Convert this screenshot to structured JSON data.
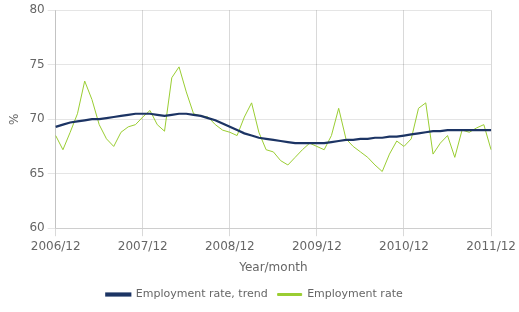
{
  "chart_data": {
    "type": "line",
    "xlabel": "Year/month",
    "ylabel": "%",
    "categories": [
      "2006/12",
      null,
      null,
      null,
      null,
      null,
      null,
      null,
      null,
      null,
      null,
      null,
      "2007/12",
      null,
      null,
      null,
      null,
      null,
      null,
      null,
      null,
      null,
      null,
      null,
      "2008/12",
      null,
      null,
      null,
      null,
      null,
      null,
      null,
      null,
      null,
      null,
      null,
      "2009/12",
      null,
      null,
      null,
      null,
      null,
      null,
      null,
      null,
      null,
      null,
      null,
      "2010/12",
      null,
      null,
      null,
      null,
      null,
      null,
      null,
      null,
      null,
      null,
      null,
      "2011/12"
    ],
    "series": [
      {
        "name": "Employment rate",
        "color": "#9ACD32",
        "values": [
          68.5,
          67.2,
          68.8,
          70.5,
          73.5,
          71.8,
          69.5,
          68.2,
          67.5,
          68.8,
          69.3,
          69.5,
          70.2,
          70.8,
          69.5,
          68.9,
          73.8,
          74.8,
          72.5,
          70.5,
          70.3,
          70.2,
          69.5,
          69.0,
          68.8,
          68.5,
          70.2,
          71.5,
          68.8,
          67.2,
          67.0,
          66.2,
          65.8,
          66.5,
          67.2,
          67.8,
          67.5,
          67.2,
          68.5,
          71.0,
          68.2,
          67.5,
          67.0,
          66.5,
          65.8,
          65.2,
          66.8,
          68.0,
          67.5,
          68.2,
          71.0,
          71.5,
          66.8,
          67.8,
          68.5,
          66.5,
          69.0,
          68.8,
          69.2,
          69.5,
          67.2
        ]
      },
      {
        "name": "Employment rate, trend",
        "color": "#1C3464",
        "values": [
          69.3,
          69.5,
          69.7,
          69.8,
          69.9,
          70.0,
          70.0,
          70.1,
          70.2,
          70.3,
          70.4,
          70.5,
          70.5,
          70.5,
          70.4,
          70.3,
          70.4,
          70.5,
          70.5,
          70.4,
          70.3,
          70.1,
          69.9,
          69.6,
          69.3,
          69.0,
          68.7,
          68.5,
          68.3,
          68.2,
          68.1,
          68.0,
          67.9,
          67.8,
          67.8,
          67.8,
          67.8,
          67.8,
          67.9,
          68.0,
          68.1,
          68.1,
          68.2,
          68.2,
          68.3,
          68.3,
          68.4,
          68.4,
          68.5,
          68.6,
          68.7,
          68.8,
          68.9,
          68.9,
          69.0,
          69.0,
          69.0,
          69.0,
          69.0,
          69.0,
          69.0
        ]
      }
    ],
    "ylim": [
      60,
      80
    ],
    "yticks": [
      60,
      65,
      70,
      75,
      80
    ],
    "grid": true,
    "legend": "bottom"
  }
}
